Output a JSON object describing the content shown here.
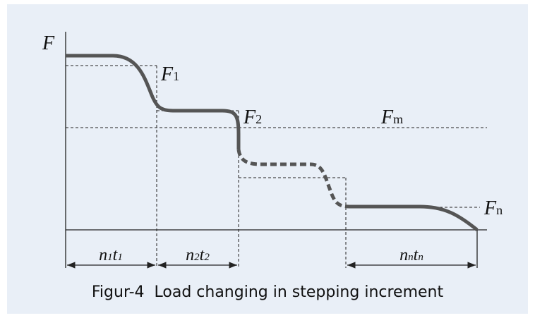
{
  "axis": {
    "y_label": "F"
  },
  "labels": [
    {
      "main": "F",
      "sub": "1"
    },
    {
      "main": "F",
      "sub": "2"
    },
    {
      "main": "F",
      "sub": "m"
    },
    {
      "main": "F",
      "sub": "n"
    }
  ],
  "intervals": [
    {
      "n": "n",
      "n_sub": "1",
      "t": "t",
      "t_sub": "1"
    },
    {
      "n": "n",
      "n_sub": "2",
      "t": "t",
      "t_sub": "2"
    },
    {
      "n": "n",
      "n_sub": "n",
      "t": "t",
      "t_sub": "n"
    }
  ],
  "caption": "Figur-4  Load changing in stepping increment"
}
